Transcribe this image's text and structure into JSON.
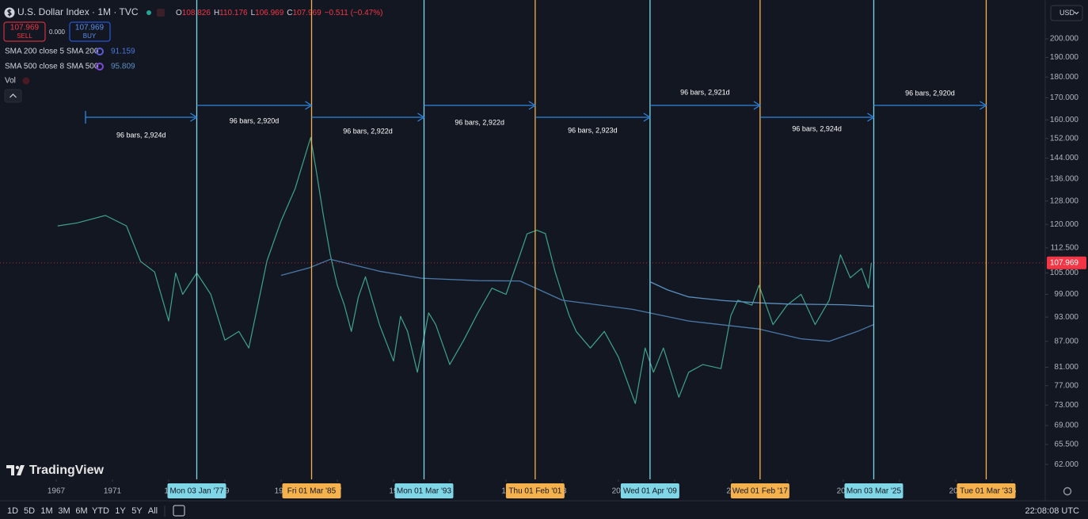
{
  "header": {
    "title": "U.S. Dollar Index · 1M · TVC",
    "ohlc": [
      {
        "label": "O",
        "value": "108.826"
      },
      {
        "label": "H",
        "value": "110.176"
      },
      {
        "label": "L",
        "value": "106.969"
      },
      {
        "label": "C",
        "value": "107.969"
      }
    ],
    "change": "−0.511 (−0.47%)"
  },
  "trade": {
    "sell_price": "107.969",
    "sell": "SELL",
    "spread": "0.000",
    "buy_price": "107.969",
    "buy": "BUY"
  },
  "indicators": [
    {
      "label": "SMA 200 close 5 SMA 200",
      "value": "91.159"
    },
    {
      "label": "SMA 500 close 8 SMA 500",
      "value": "95.809"
    },
    {
      "label": "Vol"
    }
  ],
  "currency": "USD",
  "brand": "TradingView",
  "timeframes": [
    "1D",
    "5D",
    "1M",
    "3M",
    "6M",
    "YTD",
    "1Y",
    "5Y",
    "All"
  ],
  "clock": "22:08:08 UTC",
  "chart_data": {
    "type": "line",
    "log_scale": true,
    "xlim": [
      1963,
      2037.37
    ],
    "ylim": [
      59.5,
      220.1
    ],
    "last_price": 107.969,
    "last_price_color": "#f23645",
    "xticks": [
      {
        "value": 1967,
        "label": "1967"
      },
      {
        "value": 1971,
        "label": "1971"
      },
      {
        "value": 1975,
        "label": "19"
      },
      {
        "value": 1979,
        "label": "79"
      },
      {
        "value": 1983,
        "label": "198"
      },
      {
        "value": 1987,
        "label": "87"
      },
      {
        "value": 1991,
        "label": "19"
      },
      {
        "value": 1995,
        "label": "5"
      },
      {
        "value": 1999,
        "label": "19"
      },
      {
        "value": 2003,
        "label": "03"
      },
      {
        "value": 2007,
        "label": "200"
      },
      {
        "value": 2011,
        "label": "1"
      },
      {
        "value": 2015,
        "label": "20"
      },
      {
        "value": 2019,
        "label": "9"
      },
      {
        "value": 2023,
        "label": "202"
      },
      {
        "value": 2027,
        "label": "7"
      },
      {
        "value": 2031,
        "label": "203"
      },
      {
        "value": 2035,
        "label": "35"
      }
    ],
    "yticks": [
      {
        "value": 200,
        "label": "200.000"
      },
      {
        "value": 190,
        "label": "190.000"
      },
      {
        "value": 180,
        "label": "180.000"
      },
      {
        "value": 170,
        "label": "170.000"
      },
      {
        "value": 160,
        "label": "160.000"
      },
      {
        "value": 152,
        "label": "152.000"
      },
      {
        "value": 144,
        "label": "144.000"
      },
      {
        "value": 136,
        "label": "136.000"
      },
      {
        "value": 128,
        "label": "128.000"
      },
      {
        "value": 120,
        "label": "120.000"
      },
      {
        "value": 112.5,
        "label": "112.500"
      },
      {
        "value": 105,
        "label": "105.000"
      },
      {
        "value": 99,
        "label": "99.000"
      },
      {
        "value": 93,
        "label": "93.000"
      },
      {
        "value": 87,
        "label": "87.000"
      },
      {
        "value": 81,
        "label": "81.000"
      },
      {
        "value": 77,
        "label": "77.000"
      },
      {
        "value": 73,
        "label": "73.000"
      },
      {
        "value": 69,
        "label": "69.000"
      },
      {
        "value": 65.5,
        "label": "65.500"
      },
      {
        "value": 62,
        "label": "62.000"
      }
    ],
    "series": [
      {
        "color": "#3fa38a",
        "x": [
          1967.1,
          1968.5,
          1970.5,
          1972.0,
          1973.0,
          1974.0,
          1975.0,
          1975.5,
          1976.0,
          1977.0,
          1978.0,
          1979.0,
          1980.0,
          1980.7,
          1981.5,
          1982.0,
          1983.0,
          1984.0,
          1985.1,
          1985.5,
          1986.0,
          1986.5,
          1987.0,
          1987.5,
          1988.0,
          1988.5,
          1989.0,
          1990.0,
          1991.0,
          1991.5,
          1992.0,
          1992.7,
          1993.5,
          1994.0,
          1995.0,
          1996.0,
          1997.0,
          1998.0,
          1999.0,
          2000.0,
          2000.5,
          2001.2,
          2001.8,
          2002.5,
          2003.0,
          2003.5,
          2004.0,
          2005.0,
          2006.0,
          2007.0,
          2008.2,
          2008.9,
          2009.5,
          2010.2,
          2011.3,
          2012.0,
          2013.0,
          2014.3,
          2015.0,
          2015.5,
          2016.5,
          2017.0,
          2018.0,
          2019.0,
          2020.0,
          2021.0,
          2022.0,
          2022.8,
          2023.5,
          2024.3,
          2024.8,
          2025.0
        ],
        "values": [
          119.5,
          120.5,
          123,
          119.5,
          108.4,
          105.3,
          92,
          105,
          99,
          105,
          99,
          87.3,
          89.4,
          85.4,
          99,
          108.6,
          121.2,
          132.4,
          152.4,
          139.1,
          123.3,
          110.4,
          101.5,
          96.1,
          89.4,
          98.3,
          103.9,
          91.1,
          82.4,
          93.2,
          89.4,
          79.9,
          94.1,
          91.1,
          81.6,
          87.3,
          94.1,
          100.7,
          99,
          110.4,
          116.9,
          118.1,
          117,
          105.3,
          99,
          93.4,
          89.4,
          85.4,
          89.4,
          83.3,
          73.3,
          85.4,
          79.9,
          85.4,
          74.6,
          79.9,
          81.6,
          80.7,
          93.4,
          97.4,
          96.1,
          101.5,
          91.1,
          96.1,
          99,
          91.1,
          97.4,
          110.4,
          103.6,
          106.3,
          100.7,
          107.969
        ]
      },
      {
        "name": "SMA 200",
        "color": "#4a78a8",
        "x": [
          1983.0,
          1985.0,
          1986.5,
          1990.0,
          1993.0,
          1997.0,
          2000.0,
          2003.0,
          2008.0,
          2012.0,
          2017.0,
          2020.0,
          2022.0,
          2024.0,
          2025.2
        ],
        "values": [
          104.3,
          106.5,
          109,
          105.5,
          103.5,
          102.8,
          102.7,
          97.4,
          95,
          92,
          90,
          87.6,
          87,
          89.4,
          91.159
        ]
      },
      {
        "name": "SMA 500",
        "color": "#5b8fc0",
        "x": [
          2009.3,
          2010.5,
          2012.0,
          2014.5,
          2017.0,
          2019.0,
          2021.0,
          2023.0,
          2025.2
        ],
        "values": [
          102.4,
          100.2,
          98.3,
          97.3,
          96.7,
          96.4,
          96.3,
          96.2,
          95.809
        ]
      }
    ],
    "cycle_lines": [
      {
        "x": 1977.0,
        "label": "Mon 03 Jan '77",
        "color": "#7fd6e6"
      },
      {
        "x": 1985.17,
        "label": "Fri 01 Mar '85",
        "color": "#f5b14c"
      },
      {
        "x": 1993.17,
        "label": "Mon 01 Mar '93",
        "color": "#7fd6e6"
      },
      {
        "x": 2001.08,
        "label": "Thu 01 Feb '01",
        "color": "#f5b14c"
      },
      {
        "x": 2009.25,
        "label": "Wed 01 Apr '09",
        "color": "#7fd6e6"
      },
      {
        "x": 2017.08,
        "label": "Wed 01 Feb '17",
        "color": "#f5b14c"
      },
      {
        "x": 2025.17,
        "label": "Mon 03 Mar '25",
        "color": "#7fd6e6"
      },
      {
        "x": 2033.17,
        "label": "Tue 01 Mar '33",
        "color": "#f5b14c"
      }
    ],
    "measurements": [
      "96 bars, 2,924d",
      "96 bars, 2,920d",
      "96 bars, 2,922d",
      "96 bars, 2,922d",
      "96 bars, 2,923d",
      "96 bars, 2,921d",
      "96 bars, 2,924d",
      "96 bars, 2,920d"
    ],
    "measurement_color": "#2f86e0"
  }
}
